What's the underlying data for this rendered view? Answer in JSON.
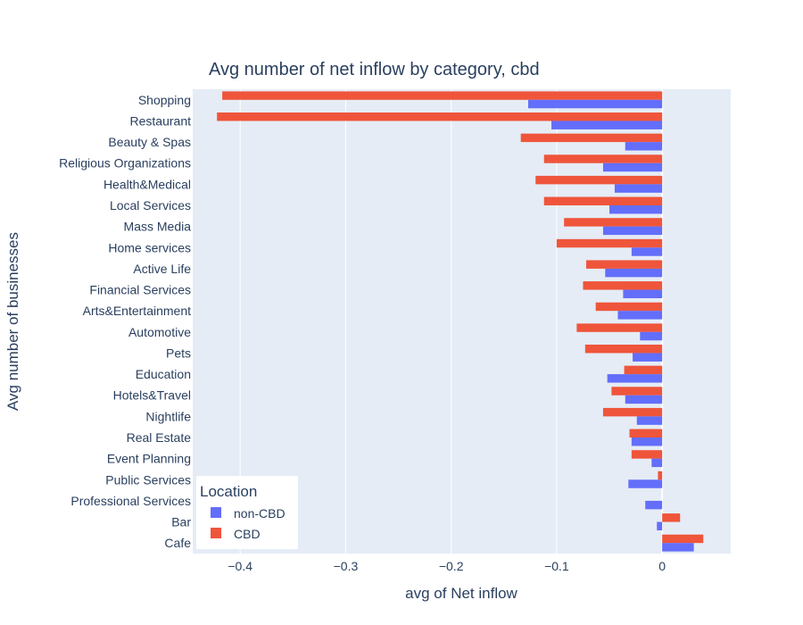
{
  "chart_data": {
    "type": "bar",
    "orientation": "horizontal",
    "title": "Avg number of net inflow by category, cbd",
    "xlabel": "avg of Net inflow",
    "ylabel": "Avg number of businesses",
    "xlim": [
      -0.445,
      0.065
    ],
    "x_ticks": [
      -0.4,
      -0.3,
      -0.2,
      -0.1,
      0
    ],
    "x_tick_labels": [
      "−0.4",
      "−0.3",
      "−0.2",
      "−0.1",
      "0"
    ],
    "grid": true,
    "legend": {
      "title": "Location",
      "position": "bottom-left"
    },
    "categories": [
      "Shopping",
      "Restaurant",
      "Beauty & Spas",
      "Religious Organizations",
      "Health&Medical",
      "Local Services",
      "Mass Media",
      "Home services",
      "Active Life",
      "Financial Services",
      "Arts&Entertainment",
      "Automotive",
      "Pets",
      "Education",
      "Hotels&Travel",
      "Nightlife",
      "Real Estate",
      "Event Planning",
      "Public Services",
      "Professional Services",
      "Bar",
      "Cafe"
    ],
    "series": [
      {
        "name": "non-CBD",
        "color": "#636efa",
        "values": [
          -0.127,
          -0.105,
          -0.035,
          -0.056,
          -0.045,
          -0.05,
          -0.056,
          -0.029,
          -0.054,
          -0.037,
          -0.042,
          -0.021,
          -0.028,
          -0.052,
          -0.035,
          -0.024,
          -0.029,
          -0.01,
          -0.032,
          -0.016,
          -0.005,
          0.03
        ]
      },
      {
        "name": "CBD",
        "color": "#ef553b",
        "values": [
          -0.417,
          -0.422,
          -0.134,
          -0.112,
          -0.12,
          -0.112,
          -0.093,
          -0.1,
          -0.072,
          -0.075,
          -0.063,
          -0.081,
          -0.073,
          -0.036,
          -0.048,
          -0.056,
          -0.031,
          -0.029,
          -0.004,
          0,
          0.017,
          0.039
        ]
      }
    ]
  }
}
